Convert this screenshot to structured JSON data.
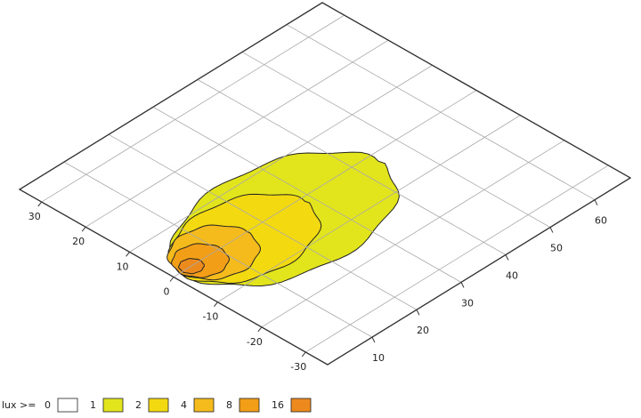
{
  "chart_data": {
    "type": "contour",
    "legend_title": "lux >=",
    "levels": [
      0,
      1,
      2,
      4,
      8,
      16
    ],
    "colors": [
      "#ffffff",
      "#e2e41c",
      "#f3da10",
      "#f5bb1c",
      "#f29e16",
      "#ec8a1e"
    ],
    "xlim": [
      0,
      68
    ],
    "ylim": [
      -35,
      35
    ],
    "xticks": [
      10,
      20,
      30,
      40,
      50,
      60
    ],
    "yticks": [
      -30,
      -20,
      -10,
      0,
      10,
      20,
      30
    ],
    "grid": true
  }
}
